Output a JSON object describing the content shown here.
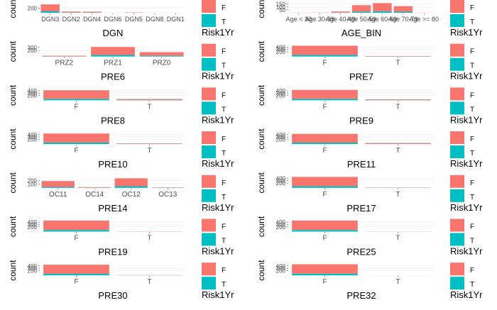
{
  "colors": {
    "F": "#F8766D",
    "T": "#00BFC4",
    "grid": "#EBEBEB",
    "tick": "#4D4D4D",
    "text": "#000000"
  },
  "chart_data": [
    {
      "type": "bar",
      "xlabel": "DGN",
      "ylabel": "count",
      "legend_title": "Risk1Yr",
      "legend_labels": [
        "F",
        "T"
      ],
      "legend_position": "right",
      "yticks": [
        200
      ],
      "ylim": [
        0,
        420
      ],
      "categories": [
        "DGN3",
        "DGN2",
        "DGN4",
        "DGN6",
        "DGN5",
        "DGN8",
        "DGN1"
      ],
      "series": [
        {
          "name": "F",
          "values": [
            295,
            40,
            36,
            3,
            12,
            2,
            1
          ]
        },
        {
          "name": "T",
          "values": [
            60,
            12,
            11,
            1,
            3,
            0,
            0
          ]
        }
      ]
    },
    {
      "type": "bar",
      "xlabel": "AGE_BIN",
      "ylabel": "count",
      "legend_title": "Risk1Yr",
      "legend_labels": [
        "F",
        "T"
      ],
      "legend_position": "right",
      "yticks": [
        50,
        100,
        150
      ],
      "ylim": [
        0,
        170
      ],
      "categories": [
        "Age < 30",
        "Age 30-39",
        "Age 40-49",
        "Age 50-59",
        "Age 60-69",
        "Age 70-79",
        "Age >= 80"
      ],
      "series": [
        {
          "name": "F",
          "values": [
            2,
            3,
            18,
            110,
            140,
            95,
            2
          ]
        },
        {
          "name": "T",
          "values": [
            0,
            1,
            4,
            20,
            25,
            18,
            0
          ]
        }
      ]
    },
    {
      "type": "bar",
      "xlabel": "PRE6",
      "ylabel": "count",
      "legend_title": "Risk1Yr",
      "legend_labels": [
        "F",
        "T"
      ],
      "legend_position": "right",
      "yticks": [
        200,
        300
      ],
      "ylim": [
        0,
        330
      ],
      "categories": [
        "PRZ2",
        "PRZ1",
        "PRZ0"
      ],
      "series": [
        {
          "name": "F",
          "values": [
            22,
            265,
            120
          ]
        },
        {
          "name": "T",
          "values": [
            5,
            53,
            25
          ]
        }
      ]
    },
    {
      "type": "bar",
      "xlabel": "PRE7",
      "ylabel": "count",
      "legend_title": "Risk1Yr",
      "legend_labels": [
        "F",
        "T"
      ],
      "legend_position": "right",
      "yticks": [
        200,
        300,
        400
      ],
      "ylim": [
        0,
        420
      ],
      "categories": [
        "F",
        "T"
      ],
      "series": [
        {
          "name": "F",
          "values": [
            390,
            16
          ]
        },
        {
          "name": "T",
          "values": [
            68,
            6
          ]
        }
      ]
    },
    {
      "type": "bar",
      "xlabel": "PRE8",
      "ylabel": "count",
      "legend_title": "Risk1Yr",
      "legend_labels": [
        "F",
        "T"
      ],
      "legend_position": "right",
      "yticks": [
        200,
        300,
        400
      ],
      "ylim": [
        0,
        420
      ],
      "categories": [
        "F",
        "T"
      ],
      "series": [
        {
          "name": "F",
          "values": [
            360,
            40
          ]
        },
        {
          "name": "T",
          "values": [
            65,
            16
          ]
        }
      ]
    },
    {
      "type": "bar",
      "xlabel": "PRE9",
      "ylabel": "count",
      "legend_title": "Risk1Yr",
      "legend_labels": [
        "F",
        "T"
      ],
      "legend_position": "right",
      "yticks": [
        200,
        300,
        400
      ],
      "ylim": [
        0,
        420
      ],
      "categories": [
        "F",
        "T"
      ],
      "series": [
        {
          "name": "F",
          "values": [
            375,
            28
          ]
        },
        {
          "name": "T",
          "values": [
            64,
            12
          ]
        }
      ]
    },
    {
      "type": "bar",
      "xlabel": "PRE10",
      "ylabel": "count",
      "legend_title": "Risk1Yr",
      "legend_labels": [
        "F",
        "T"
      ],
      "legend_position": "right",
      "yticks": [
        200,
        300,
        400
      ],
      "ylim": [
        0,
        420
      ],
      "categories": [
        "F",
        "T"
      ],
      "series": [
        {
          "name": "F",
          "values": [
            380,
            22
          ]
        },
        {
          "name": "T",
          "values": [
            66,
            10
          ]
        }
      ]
    },
    {
      "type": "bar",
      "xlabel": "PRE11",
      "ylabel": "count",
      "legend_title": "Risk1Yr",
      "legend_labels": [
        "F",
        "T"
      ],
      "legend_position": "right",
      "yticks": [
        200,
        300,
        400
      ],
      "ylim": [
        0,
        420
      ],
      "categories": [
        "F",
        "T"
      ],
      "series": [
        {
          "name": "F",
          "values": [
            370,
            32
          ]
        },
        {
          "name": "T",
          "values": [
            62,
            14
          ]
        }
      ]
    },
    {
      "type": "bar",
      "xlabel": "PRE14",
      "ylabel": "count",
      "legend_title": "Risk1Yr",
      "legend_labels": [
        "F",
        "T"
      ],
      "legend_position": "right",
      "yticks": [
        100,
        200
      ],
      "ylim": [
        0,
        270
      ],
      "categories": [
        "OC11",
        "OC14",
        "OC12",
        "OC13"
      ],
      "series": [
        {
          "name": "F",
          "values": [
            160,
            15,
            215,
            10
          ]
        },
        {
          "name": "T",
          "values": [
            25,
            5,
            45,
            4
          ]
        }
      ]
    },
    {
      "type": "bar",
      "xlabel": "PRE17",
      "ylabel": "count",
      "legend_title": "Risk1Yr",
      "legend_labels": [
        "F",
        "T"
      ],
      "legend_position": "right",
      "yticks": [
        200,
        300,
        400
      ],
      "ylim": [
        0,
        420
      ],
      "categories": [
        "F",
        "T"
      ],
      "series": [
        {
          "name": "F",
          "values": [
            395,
            12
          ]
        },
        {
          "name": "T",
          "values": [
            68,
            4
          ]
        }
      ]
    },
    {
      "type": "bar",
      "xlabel": "PRE19",
      "ylabel": "count",
      "legend_title": "Risk1Yr",
      "legend_labels": [
        "F",
        "T"
      ],
      "legend_position": "right",
      "yticks": [
        200,
        300,
        400
      ],
      "ylim": [
        0,
        420
      ],
      "categories": [
        "F",
        "T"
      ],
      "series": [
        {
          "name": "F",
          "values": [
            398,
            8
          ]
        },
        {
          "name": "T",
          "values": [
            69,
            3
          ]
        }
      ]
    },
    {
      "type": "bar",
      "xlabel": "PRE25",
      "ylabel": "count",
      "legend_title": "Risk1Yr",
      "legend_labels": [
        "F",
        "T"
      ],
      "legend_position": "right",
      "yticks": [
        200,
        300,
        400
      ],
      "ylim": [
        0,
        420
      ],
      "categories": [
        "F",
        "T"
      ],
      "series": [
        {
          "name": "F",
          "values": [
            398,
            6
          ]
        },
        {
          "name": "T",
          "values": [
            69,
            2
          ]
        }
      ]
    },
    {
      "type": "bar",
      "xlabel": "PRE30",
      "ylabel": "count",
      "legend_title": "Risk1Yr",
      "legend_labels": [
        "F",
        "T"
      ],
      "legend_position": "right",
      "yticks": [
        200,
        300,
        400
      ],
      "ylim": [
        0,
        420
      ],
      "categories": [
        "F",
        "T"
      ],
      "series": [
        {
          "name": "F",
          "values": [
            385,
            10
          ]
        },
        {
          "name": "T",
          "values": [
            68,
            3
          ]
        }
      ]
    },
    {
      "type": "bar",
      "xlabel": "PRE32",
      "ylabel": "count",
      "legend_title": "Risk1Yr",
      "legend_labels": [
        "F",
        "T"
      ],
      "legend_position": "right",
      "yticks": [
        200,
        300,
        400
      ],
      "ylim": [
        0,
        420
      ],
      "categories": [
        "F",
        "T"
      ],
      "series": [
        {
          "name": "F",
          "values": [
            400,
            2
          ]
        },
        {
          "name": "T",
          "values": [
            70,
            1
          ]
        }
      ]
    }
  ]
}
